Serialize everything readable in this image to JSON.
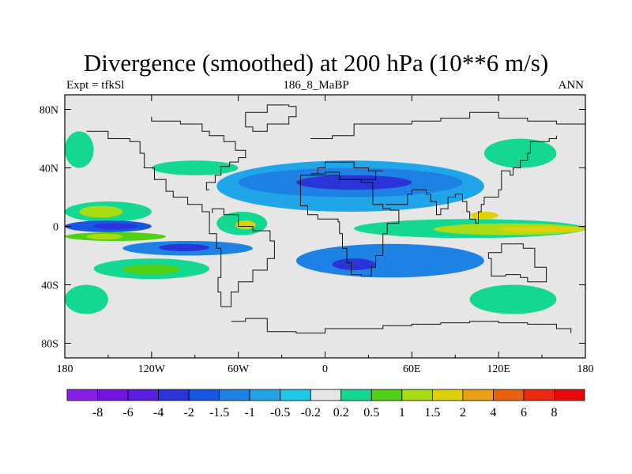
{
  "chart_data": {
    "type": "map-contour",
    "title": "Divergence (smoothed) at 200 hPa (10**6 m/s)",
    "subtitle_left": "Expt = tfkSl",
    "subtitle_center": "186_8_MaBP",
    "subtitle_right": "ANN",
    "lon_range": [
      -180,
      180
    ],
    "lat_range": [
      -90,
      90
    ],
    "x_ticks": [
      {
        "value": -180,
        "label": "180"
      },
      {
        "value": -120,
        "label": "120W"
      },
      {
        "value": -60,
        "label": "60W"
      },
      {
        "value": 0,
        "label": "0"
      },
      {
        "value": 60,
        "label": "60E"
      },
      {
        "value": 120,
        "label": "120E"
      },
      {
        "value": 180,
        "label": "180"
      }
    ],
    "y_ticks": [
      {
        "value": 80,
        "label": "80N"
      },
      {
        "value": 40,
        "label": "40N"
      },
      {
        "value": 0,
        "label": "0"
      },
      {
        "value": -40,
        "label": "40S"
      },
      {
        "value": -80,
        "label": "80S"
      }
    ],
    "colorbar": {
      "levels": [
        "-8",
        "-6",
        "-4",
        "-2",
        "-1.5",
        "-1",
        "-0.5",
        "-0.2",
        "0.2",
        "0.5",
        "1",
        "1.5",
        "2",
        "4",
        "6",
        "8"
      ],
      "colors": [
        "#8a1ee6",
        "#7314e0",
        "#5a1ce0",
        "#2a34d8",
        "#1656e0",
        "#1e82e4",
        "#20a6e8",
        "#1ec8e8",
        "#e6e6e6",
        "#14d892",
        "#50d014",
        "#aadc14",
        "#e0d008",
        "#e8a010",
        "#e86010",
        "#e82a10",
        "#e80808"
      ]
    },
    "regions": [
      {
        "level": 0.5,
        "lon_min": -180,
        "lon_max": -120,
        "lat_min": 3,
        "lat_max": 17
      },
      {
        "level": 1.5,
        "lon_min": -170,
        "lon_max": -140,
        "lat_min": 6,
        "lat_max": 14
      },
      {
        "level": -1.5,
        "lon_min": -180,
        "lon_max": -120,
        "lat_min": -4,
        "lat_max": 4
      },
      {
        "level": -2,
        "lon_min": -160,
        "lon_max": -130,
        "lat_min": -2,
        "lat_max": 2
      },
      {
        "level": 1,
        "lon_min": -180,
        "lon_max": -110,
        "lat_min": -10,
        "lat_max": -4
      },
      {
        "level": 1.5,
        "lon_min": -165,
        "lon_max": -140,
        "lat_min": -9,
        "lat_max": -5
      },
      {
        "level": -1,
        "lon_min": -140,
        "lon_max": -50,
        "lat_min": -20,
        "lat_max": -10
      },
      {
        "level": -2,
        "lon_min": -115,
        "lon_max": -80,
        "lat_min": -17,
        "lat_max": -12
      },
      {
        "level": 0.5,
        "lon_min": -160,
        "lon_max": -80,
        "lat_min": -36,
        "lat_max": -22
      },
      {
        "level": 1,
        "lon_min": -140,
        "lon_max": -100,
        "lat_min": -33,
        "lat_max": -26
      },
      {
        "level": -0.5,
        "lon_min": -75,
        "lon_max": 110,
        "lat_min": 10,
        "lat_max": 45
      },
      {
        "level": -1,
        "lon_min": -60,
        "lon_max": 95,
        "lat_min": 20,
        "lat_max": 40
      },
      {
        "level": -2,
        "lon_min": -20,
        "lon_max": 60,
        "lat_min": 25,
        "lat_max": 35
      },
      {
        "level": 0.5,
        "lon_min": -75,
        "lon_max": -40,
        "lat_min": -6,
        "lat_max": 10
      },
      {
        "level": 2,
        "lon_min": -62,
        "lon_max": -48,
        "lat_min": -2,
        "lat_max": 4
      },
      {
        "level": 0.5,
        "lon_min": 20,
        "lon_max": 180,
        "lat_min": -8,
        "lat_max": 5
      },
      {
        "level": 1.5,
        "lon_min": 75,
        "lon_max": 180,
        "lat_min": -6,
        "lat_max": 2
      },
      {
        "level": 2,
        "lon_min": 120,
        "lon_max": 180,
        "lat_min": -4,
        "lat_max": 0
      },
      {
        "level": 2,
        "lon_min": 100,
        "lon_max": 120,
        "lat_min": 5,
        "lat_max": 10
      },
      {
        "level": -1,
        "lon_min": -20,
        "lon_max": 110,
        "lat_min": -35,
        "lat_max": -12
      },
      {
        "level": -2,
        "lon_min": 5,
        "lon_max": 35,
        "lat_min": -30,
        "lat_max": -22
      },
      {
        "level": 0.5,
        "lon_min": -120,
        "lon_max": -60,
        "lat_min": 35,
        "lat_max": 45
      },
      {
        "level": 0.5,
        "lon_min": -180,
        "lon_max": -160,
        "lat_min": 40,
        "lat_max": 65
      },
      {
        "level": 0.5,
        "lon_min": 110,
        "lon_max": 160,
        "lat_min": 40,
        "lat_max": 60
      },
      {
        "level": 0.5,
        "lon_min": 100,
        "lon_max": 160,
        "lat_min": -60,
        "lat_max": -40
      },
      {
        "level": 0.5,
        "lon_min": -180,
        "lon_max": -150,
        "lat_min": -60,
        "lat_max": -40
      }
    ]
  }
}
